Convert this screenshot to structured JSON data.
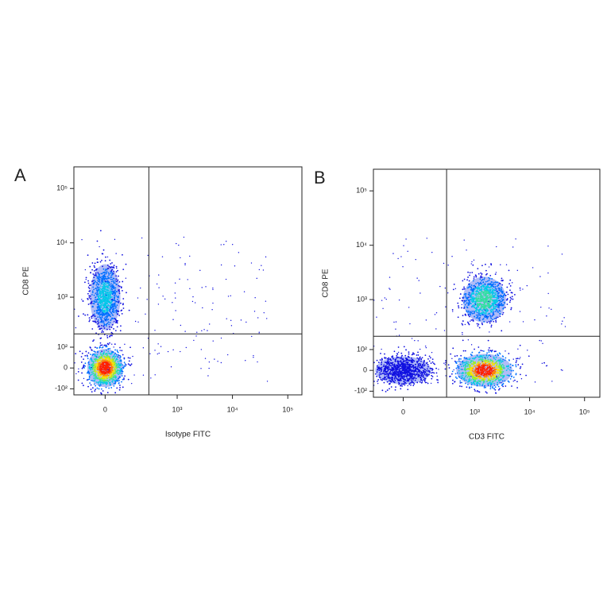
{
  "chart_data": [
    {
      "type": "density",
      "label": "A",
      "xlabel": "Isotype FITC",
      "ylabel": "CD8 PE",
      "scale": "biexponential",
      "xlim": [
        -170,
        180000
      ],
      "ylim": [
        -140,
        250000
      ],
      "xticks": [
        0,
        {
          "value": 1000,
          "label": "10³"
        },
        {
          "value": 10000,
          "label": "10⁴"
        },
        {
          "value": 100000,
          "label": "10⁵"
        }
      ],
      "yticks": [
        {
          "value": -100,
          "label": "-10²"
        },
        0,
        {
          "value": 100,
          "label": "10²"
        },
        {
          "value": 1000,
          "label": "10³"
        },
        {
          "value": 10000,
          "label": "10⁴"
        },
        {
          "value": 100000,
          "label": "10⁵"
        }
      ],
      "gates": {
        "x": 300,
        "y": 200
      },
      "populations": [
        {
          "x": 0,
          "y": 1000,
          "color": "#00c8e8"
        },
        {
          "x": 0,
          "y": 0,
          "color": "#ff2000"
        }
      ]
    },
    {
      "type": "density",
      "label": "B",
      "xlabel": "CD3 FITC",
      "ylabel": "CD8 PE",
      "scale": "biexponential",
      "xlim": [
        -160,
        190000
      ],
      "ylim": [
        -140,
        250000
      ],
      "xticks": [
        0,
        {
          "value": 1000,
          "label": "10³"
        },
        {
          "value": 10000,
          "label": "10⁴"
        },
        {
          "value": 100000,
          "label": "10⁵"
        }
      ],
      "yticks": [
        {
          "value": -100,
          "label": "-10²"
        },
        0,
        {
          "value": 100,
          "label": "10²"
        },
        {
          "value": 1000,
          "label": "10³"
        },
        {
          "value": 10000,
          "label": "10⁴"
        },
        {
          "value": 100000,
          "label": "10⁵"
        }
      ],
      "gates": {
        "x": 300,
        "y": 200
      },
      "populations": [
        {
          "x": 1500,
          "y": 1000,
          "color": "#30e0a0"
        },
        {
          "x": 1500,
          "y": 0,
          "color": "#ff2000"
        },
        {
          "x": 0,
          "y": 0,
          "color": "#00d0e0"
        }
      ]
    }
  ]
}
